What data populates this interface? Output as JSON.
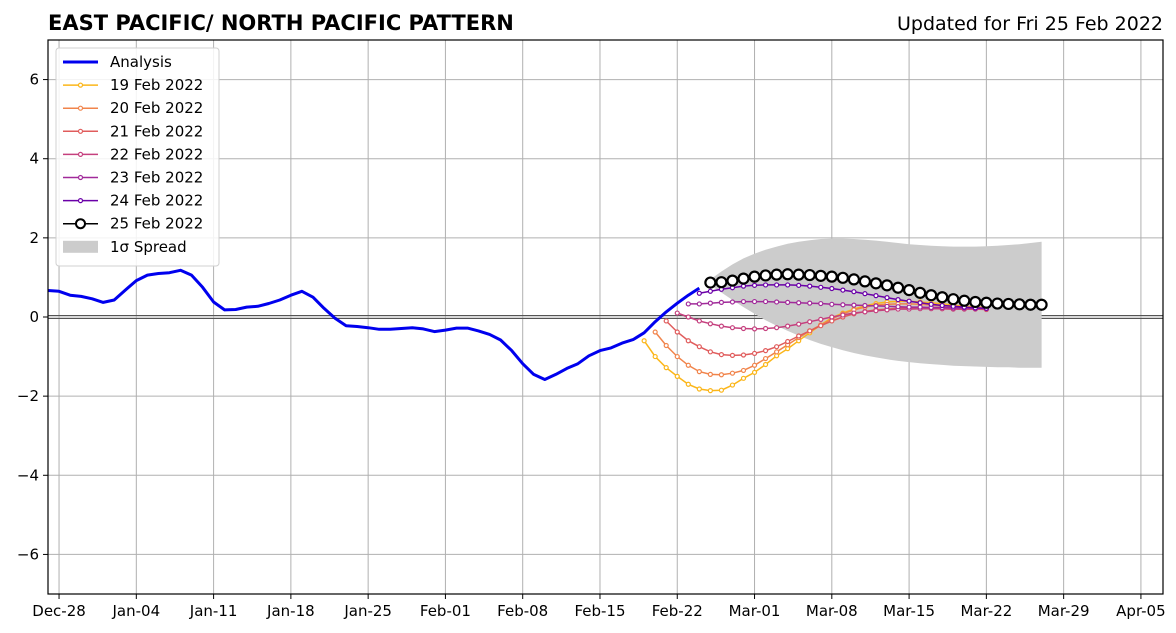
{
  "chart_data": {
    "type": "line",
    "title": "EAST PACIFIC/ NORTH PACIFIC PATTERN",
    "subtitle": "Updated for Fri 25 Feb 2022",
    "x_tick_labels": [
      "Dec-28",
      "Jan-04",
      "Jan-11",
      "Jan-18",
      "Jan-25",
      "Feb-01",
      "Feb-08",
      "Feb-15",
      "Feb-22",
      "Mar-01",
      "Mar-08",
      "Mar-15",
      "Mar-22",
      "Mar-29",
      "Apr-05"
    ],
    "x_start_label": "Dec-28",
    "xlim": [
      -1,
      100
    ],
    "ylim": [
      -7,
      7
    ],
    "y_ticks": [
      -6,
      -4,
      -2,
      0,
      2,
      4,
      6
    ],
    "y_tick_labels": [
      "−6",
      "−4",
      "−2",
      "0",
      "2",
      "4",
      "6"
    ],
    "grid": true,
    "legend_position": "upper-left",
    "legend": [
      {
        "label": "Analysis",
        "color": "#0000ee",
        "style": "analysis"
      },
      {
        "label": "19 Feb 2022",
        "color": "#fbb61a",
        "style": "forecast"
      },
      {
        "label": "20 Feb 2022",
        "color": "#f1844b",
        "style": "forecast"
      },
      {
        "label": "21 Feb 2022",
        "color": "#e05c5c",
        "style": "forecast"
      },
      {
        "label": "22 Feb 2022",
        "color": "#c5407e",
        "style": "forecast"
      },
      {
        "label": "23 Feb 2022",
        "color": "#a12a9a",
        "style": "forecast"
      },
      {
        "label": "24 Feb 2022",
        "color": "#6a00a8",
        "style": "forecast"
      },
      {
        "label": "25 Feb 2022",
        "color": "#000000",
        "style": "latest"
      },
      {
        "label": "1σ Spread",
        "color": "#cccccc",
        "style": "spread"
      }
    ],
    "analysis": {
      "name": "Analysis",
      "x": [
        -1,
        0,
        1,
        2,
        3,
        4,
        5,
        6,
        7,
        8,
        9,
        10,
        11,
        12,
        13,
        14,
        15,
        16,
        17,
        18,
        19,
        20,
        21,
        22,
        23,
        24,
        25,
        26,
        27,
        28,
        29,
        30,
        31,
        32,
        33,
        34,
        35,
        36,
        37,
        38,
        39,
        40,
        41,
        42,
        43,
        44,
        45,
        46,
        47,
        48,
        49,
        50,
        51,
        52,
        53,
        54,
        55,
        56,
        57,
        58
      ],
      "y": [
        0.67,
        0.65,
        0.55,
        0.52,
        0.46,
        0.37,
        0.43,
        0.68,
        0.92,
        1.06,
        1.1,
        1.12,
        1.18,
        1.06,
        0.75,
        0.38,
        0.18,
        0.19,
        0.25,
        0.27,
        0.34,
        0.43,
        0.55,
        0.65,
        0.5,
        0.22,
        -0.03,
        -0.22,
        -0.24,
        -0.27,
        -0.31,
        -0.31,
        -0.29,
        -0.27,
        -0.3,
        -0.37,
        -0.33,
        -0.28,
        -0.28,
        -0.35,
        -0.44,
        -0.58,
        -0.85,
        -1.18,
        -1.45,
        -1.58,
        -1.45,
        -1.3,
        -1.18,
        -0.98,
        -0.85,
        -0.78,
        -0.66,
        -0.57,
        -0.4,
        -0.12,
        0.13,
        0.35,
        0.55,
        0.73
      ]
    },
    "forecasts": [
      {
        "name": "19 Feb 2022",
        "x0": 53,
        "y": [
          -0.6,
          -1.0,
          -1.28,
          -1.5,
          -1.7,
          -1.82,
          -1.86,
          -1.85,
          -1.72,
          -1.55,
          -1.4,
          -1.2,
          -0.98,
          -0.8,
          -0.6,
          -0.4,
          -0.2,
          -0.02,
          0.1,
          0.2,
          0.28,
          0.34,
          0.38,
          0.4,
          0.4,
          0.38,
          0.36,
          0.33,
          0.3,
          0.27,
          0.25,
          0.24
        ]
      },
      {
        "name": "20 Feb 2022",
        "x0": 54,
        "y": [
          -0.38,
          -0.72,
          -1.0,
          -1.22,
          -1.38,
          -1.45,
          -1.46,
          -1.42,
          -1.35,
          -1.22,
          -1.05,
          -0.88,
          -0.7,
          -0.52,
          -0.35,
          -0.2,
          -0.05,
          0.08,
          0.18,
          0.25,
          0.3,
          0.32,
          0.33,
          0.33,
          0.32,
          0.3,
          0.28,
          0.27,
          0.25,
          0.24,
          0.23
        ]
      },
      {
        "name": "21 Feb 2022",
        "x0": 55,
        "y": [
          -0.1,
          -0.38,
          -0.6,
          -0.75,
          -0.88,
          -0.95,
          -0.97,
          -0.96,
          -0.92,
          -0.85,
          -0.75,
          -0.62,
          -0.48,
          -0.35,
          -0.22,
          -0.1,
          0.0,
          0.08,
          0.14,
          0.18,
          0.2,
          0.22,
          0.22,
          0.22,
          0.22,
          0.21,
          0.2,
          0.2,
          0.2,
          0.19
        ]
      },
      {
        "name": "22 Feb 2022",
        "x0": 56,
        "y": [
          0.1,
          0.0,
          -0.1,
          -0.17,
          -0.23,
          -0.27,
          -0.29,
          -0.3,
          -0.29,
          -0.27,
          -0.23,
          -0.18,
          -0.12,
          -0.06,
          0.0,
          0.05,
          0.1,
          0.13,
          0.16,
          0.18,
          0.2,
          0.2,
          0.21,
          0.21,
          0.21,
          0.2,
          0.2,
          0.2,
          0.2
        ]
      },
      {
        "name": "23 Feb 2022",
        "x0": 57,
        "y": [
          0.33,
          0.33,
          0.35,
          0.37,
          0.38,
          0.39,
          0.39,
          0.39,
          0.38,
          0.37,
          0.36,
          0.35,
          0.34,
          0.32,
          0.31,
          0.3,
          0.29,
          0.28,
          0.27,
          0.26,
          0.25,
          0.25,
          0.24,
          0.24,
          0.23,
          0.23,
          0.22,
          0.22
        ]
      },
      {
        "name": "24 Feb 2022",
        "x0": 58,
        "y": [
          0.6,
          0.65,
          0.7,
          0.74,
          0.78,
          0.8,
          0.81,
          0.81,
          0.81,
          0.8,
          0.78,
          0.75,
          0.72,
          0.68,
          0.64,
          0.59,
          0.54,
          0.49,
          0.44,
          0.4,
          0.36,
          0.32,
          0.29,
          0.27,
          0.25,
          0.23,
          0.22
        ]
      }
    ],
    "latest": {
      "name": "25 Feb 2022",
      "x0": 59,
      "y": [
        0.87,
        0.88,
        0.92,
        0.97,
        1.02,
        1.05,
        1.07,
        1.08,
        1.07,
        1.06,
        1.04,
        1.02,
        0.99,
        0.95,
        0.9,
        0.85,
        0.8,
        0.74,
        0.68,
        0.61,
        0.55,
        0.5,
        0.45,
        0.41,
        0.38,
        0.36,
        0.34,
        0.33,
        0.32,
        0.31,
        0.31
      ]
    },
    "spread": {
      "x0": 59,
      "upper": [
        0.95,
        1.15,
        1.33,
        1.48,
        1.6,
        1.7,
        1.78,
        1.85,
        1.9,
        1.94,
        1.97,
        1.98,
        1.98,
        1.97,
        1.95,
        1.93,
        1.9,
        1.87,
        1.84,
        1.82,
        1.8,
        1.79,
        1.78,
        1.78,
        1.78,
        1.79,
        1.8,
        1.82,
        1.84,
        1.87,
        1.9
      ],
      "lower": [
        0.8,
        0.62,
        0.43,
        0.25,
        0.08,
        -0.08,
        -0.22,
        -0.35,
        -0.47,
        -0.58,
        -0.68,
        -0.76,
        -0.84,
        -0.91,
        -0.97,
        -1.02,
        -1.07,
        -1.11,
        -1.14,
        -1.17,
        -1.19,
        -1.21,
        -1.23,
        -1.24,
        -1.25,
        -1.26,
        -1.27,
        -1.27,
        -1.28,
        -1.28,
        -1.28
      ]
    }
  }
}
